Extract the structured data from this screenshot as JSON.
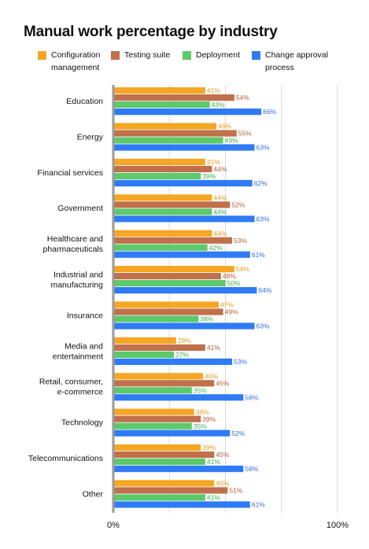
{
  "chart_data": {
    "type": "bar",
    "orientation": "horizontal",
    "title": "Manual work percentage by industry",
    "categories": [
      [
        "Education"
      ],
      [
        "Energy"
      ],
      [
        "Financial services"
      ],
      [
        "Government"
      ],
      [
        "Healthcare and",
        "pharmaceuticals"
      ],
      [
        "Industrial and",
        "manufacturing"
      ],
      [
        "Insurance"
      ],
      [
        "Media and",
        "entertainment"
      ],
      [
        "Retail, consumer,",
        "e-commerce"
      ],
      [
        "Technology"
      ],
      [
        "Telecommunications"
      ],
      [
        "Other"
      ]
    ],
    "series": [
      {
        "name": "Configuration management",
        "color": "#F5A623",
        "label_color": "#E39A1F",
        "values": [
          41,
          46,
          41,
          44,
          44,
          54,
          47,
          28,
          40,
          36,
          39,
          45
        ]
      },
      {
        "name": "Testing suite",
        "color": "#C0704A",
        "label_color": "#B5603A",
        "values": [
          54,
          55,
          44,
          52,
          53,
          48,
          49,
          41,
          45,
          39,
          45,
          51
        ]
      },
      {
        "name": "Deployment",
        "color": "#5CC96A",
        "label_color": "#3FAE4E",
        "values": [
          43,
          49,
          39,
          44,
          42,
          50,
          38,
          27,
          35,
          35,
          41,
          41
        ]
      },
      {
        "name": "Change approval process",
        "color": "#2F7BF5",
        "label_color": "#2F6FE0",
        "values": [
          66,
          63,
          62,
          63,
          61,
          64,
          63,
          53,
          58,
          52,
          58,
          61
        ]
      }
    ],
    "value_suffix": "%",
    "xlim": [
      0,
      100
    ],
    "x_tick_labels": [
      {
        "value": 0,
        "label": "0%"
      },
      {
        "value": 100,
        "label": "100%"
      }
    ],
    "grid": true,
    "legend_position": "top"
  },
  "legend": [
    {
      "label": "Configuration management",
      "color": "#F5A623",
      "icon": "orange-square"
    },
    {
      "label": "Testing suite",
      "color": "#C0704A",
      "icon": "brown-square"
    },
    {
      "label": "Deployment",
      "color": "#5CC96A",
      "icon": "green-square"
    },
    {
      "label": "Change approval process",
      "color": "#2F7BF5",
      "icon": "blue-square"
    }
  ]
}
